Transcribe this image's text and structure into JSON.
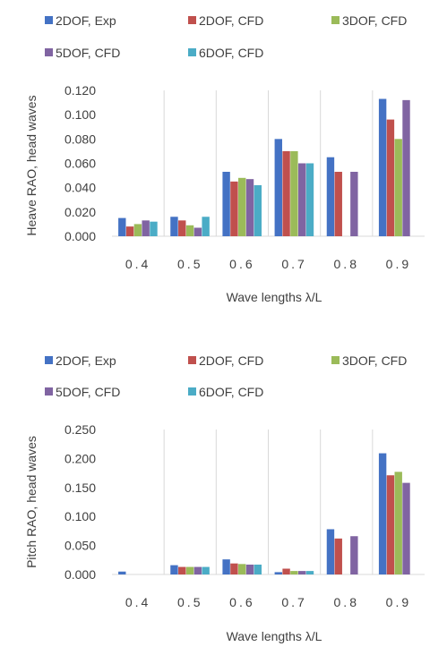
{
  "chart_data": [
    {
      "type": "bar",
      "title": "",
      "xlabel": "Wave lengths λ/L",
      "ylabel": "Heave RAO, head waves",
      "categories": [
        "0.4",
        "0.5",
        "0.6",
        "0.7",
        "0.8",
        "0.9"
      ],
      "ylim": [
        0,
        0.12
      ],
      "yticks": [
        "0.000",
        "0.020",
        "0.040",
        "0.060",
        "0.080",
        "0.100",
        "0.120"
      ],
      "legend_position": "top",
      "grid": "vertical category dividers",
      "series": [
        {
          "name": "2DOF, Exp",
          "color": "#4472C4",
          "values": [
            0.015,
            0.016,
            0.053,
            0.08,
            0.065,
            0.113
          ]
        },
        {
          "name": "2DOF, CFD",
          "color": "#C0504D",
          "values": [
            0.008,
            0.013,
            0.045,
            0.07,
            0.053,
            0.096
          ]
        },
        {
          "name": "3DOF, CFD",
          "color": "#9BBB59",
          "values": [
            0.01,
            0.009,
            0.048,
            0.07,
            null,
            0.08
          ]
        },
        {
          "name": "5DOF, CFD",
          "color": "#8064A2",
          "values": [
            0.013,
            0.007,
            0.047,
            0.06,
            0.053,
            0.112
          ]
        },
        {
          "name": "6DOF, CFD",
          "color": "#4BACC6",
          "values": [
            0.012,
            0.016,
            0.042,
            0.06,
            null,
            null
          ]
        }
      ]
    },
    {
      "type": "bar",
      "title": "",
      "xlabel": "Wave lengths λ/L",
      "ylabel": "Pitch RAO, head waves",
      "categories": [
        "0.4",
        "0.5",
        "0.6",
        "0.7",
        "0.8",
        "0.9"
      ],
      "ylim": [
        0,
        0.25
      ],
      "yticks": [
        "0.000",
        "0.050",
        "0.100",
        "0.150",
        "0.200",
        "0.250"
      ],
      "legend_position": "top",
      "grid": "vertical category dividers",
      "series": [
        {
          "name": "2DOF, Exp",
          "color": "#4472C4",
          "values": [
            0.005,
            0.016,
            0.026,
            0.004,
            0.078,
            0.209
          ]
        },
        {
          "name": "2DOF, CFD",
          "color": "#C0504D",
          "values": [
            null,
            0.013,
            0.019,
            0.01,
            0.062,
            0.171
          ]
        },
        {
          "name": "3DOF, CFD",
          "color": "#9BBB59",
          "values": [
            null,
            0.013,
            0.018,
            0.006,
            null,
            0.177
          ]
        },
        {
          "name": "5DOF, CFD",
          "color": "#8064A2",
          "values": [
            null,
            0.013,
            0.017,
            0.006,
            0.066,
            0.158
          ]
        },
        {
          "name": "6DOF, CFD",
          "color": "#4BACC6",
          "values": [
            null,
            0.013,
            0.017,
            0.006,
            null,
            null
          ]
        }
      ]
    }
  ]
}
